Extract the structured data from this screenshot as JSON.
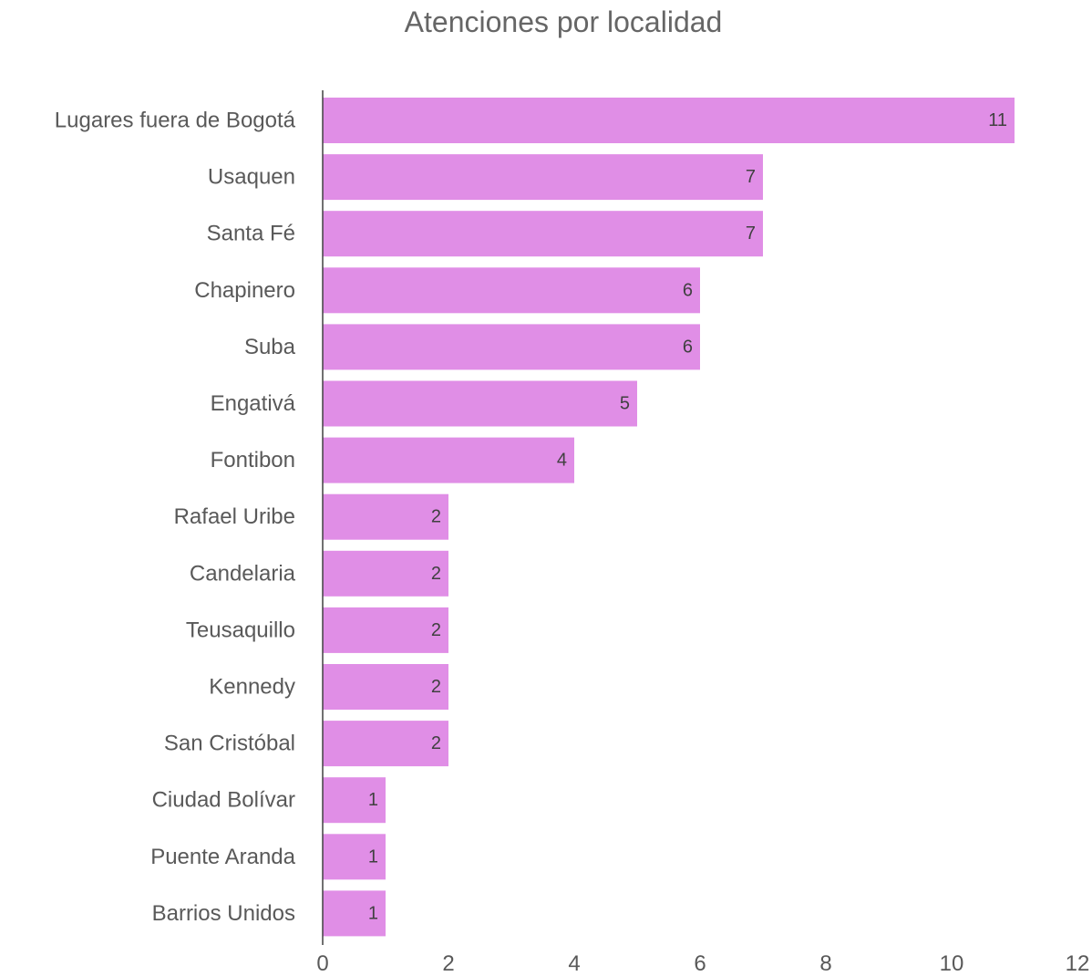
{
  "chart_data": {
    "type": "bar",
    "orientation": "horizontal",
    "title": "Atenciones por localidad",
    "xlabel": "",
    "ylabel": "",
    "categories": [
      "Lugares fuera de Bogotá",
      "Usaquen",
      "Santa   Fé",
      "Chapinero",
      "Suba",
      "Engativá",
      "Fontibon",
      "Rafael Uribe",
      "Candelaria",
      "Teusaquillo",
      "Kennedy",
      "San Cristóbal",
      "Ciudad Bolívar",
      "Puente  Aranda",
      "Barrios Unidos"
    ],
    "values": [
      11,
      7,
      7,
      6,
      6,
      5,
      4,
      2,
      2,
      2,
      2,
      2,
      1,
      1,
      1
    ],
    "xlim": [
      0,
      12
    ],
    "xticks": [
      "0",
      "2",
      "4",
      "6",
      "8",
      "10",
      "12"
    ],
    "grid": false,
    "legend": "none",
    "colors": {
      "bar": "#e08ee6",
      "axis": "#404040",
      "text": "#595959",
      "title": "#666666",
      "value_text": "#404040"
    }
  }
}
